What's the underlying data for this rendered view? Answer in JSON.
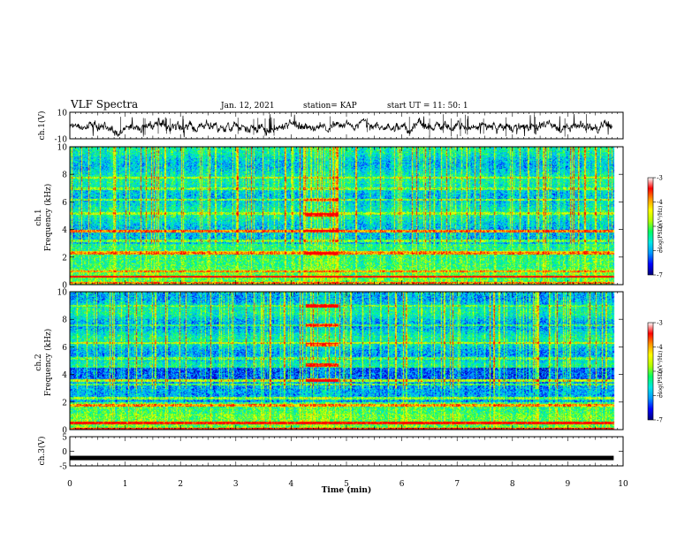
{
  "header": {
    "title": "VLF Spectra",
    "date": "Jan. 12, 2021",
    "station": "station= KAP",
    "start": "start  UT =   11: 50: 1"
  },
  "chart_data": [
    {
      "type": "line",
      "panel": "ch1-waveform",
      "ylabel": "ch.1(V)",
      "ylim": [
        -10,
        10
      ],
      "yticks": [
        10,
        -10
      ],
      "xlim": [
        0,
        10
      ],
      "description_values": {
        "baseline": 0,
        "typical_range": [
          -3,
          3
        ]
      }
    },
    {
      "type": "heatmap",
      "panel": "ch1-spectrogram",
      "ylabel": "ch.1\nFrequency (kHz)",
      "ylabel_lines": [
        "ch.1",
        "Frequency (kHz)"
      ],
      "ylim": [
        0,
        10
      ],
      "yticks": [
        0,
        2,
        4,
        6,
        8,
        10
      ],
      "xlim": [
        0,
        10
      ],
      "colorbar": {
        "label": "log(PSD)(V²/Hz)",
        "ticks": [
          -3,
          -4,
          -5,
          -6,
          -7
        ],
        "range": [
          -7,
          -3
        ]
      },
      "event_window": [
        4.25,
        4.85
      ]
    },
    {
      "type": "heatmap",
      "panel": "ch2-spectrogram",
      "ylabel_lines": [
        "ch.2",
        "Frequency (kHz)"
      ],
      "ylim": [
        0,
        10
      ],
      "yticks": [
        0,
        2,
        4,
        6,
        8,
        10
      ],
      "xlim": [
        0,
        10
      ],
      "colorbar": {
        "label": "log(PSD)(V²/Hz)",
        "ticks": [
          -3,
          -4,
          -5,
          -6,
          -7
        ],
        "range": [
          -7,
          -3
        ]
      },
      "event_window": [
        4.25,
        4.85
      ]
    },
    {
      "type": "line",
      "panel": "ch3-waveform",
      "ylabel": "ch.3(V)",
      "ylim": [
        -5,
        5
      ],
      "yticks": [
        5,
        0,
        -5
      ],
      "xlim": [
        0,
        10
      ],
      "xlabel": "Time (min)",
      "xticks": [
        0,
        1,
        2,
        3,
        4,
        5,
        6,
        7,
        8,
        9,
        10
      ],
      "description_values": {
        "baseline": -2.3
      }
    }
  ],
  "colors": {
    "colormap": [
      "#00007a",
      "#0000ff",
      "#0096ff",
      "#00e6e6",
      "#00ff64",
      "#b4ff00",
      "#ffff00",
      "#ff9600",
      "#ff0000",
      "#ffffff"
    ]
  }
}
